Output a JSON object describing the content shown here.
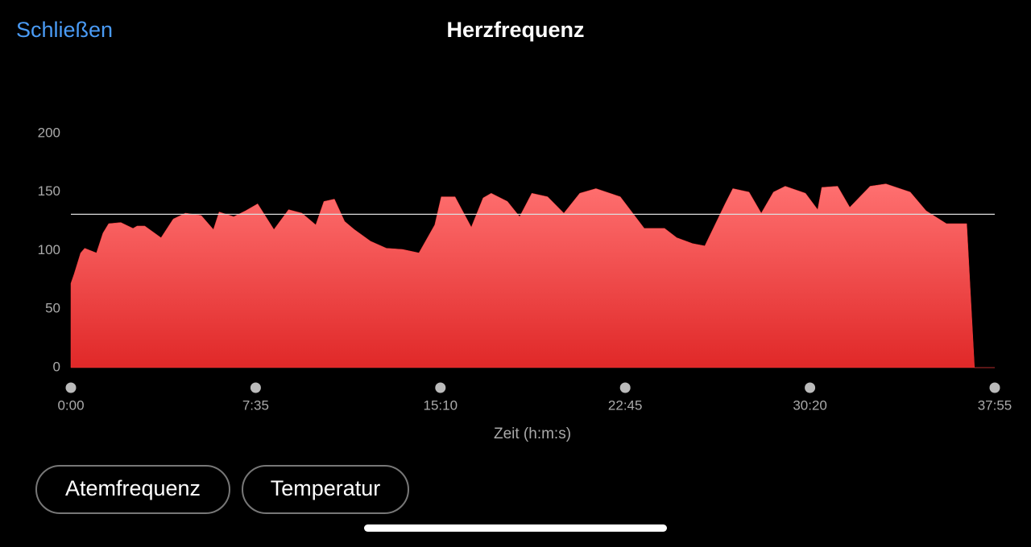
{
  "header": {
    "close": "Schließen",
    "title": "Herzfrequenz"
  },
  "chart_data": {
    "type": "area",
    "xlabel": "Zeit (h:m:s)",
    "x": [
      0,
      8,
      24,
      34,
      63,
      79,
      93,
      123,
      153,
      163,
      182,
      222,
      252,
      282,
      321,
      351,
      365,
      401,
      430,
      460,
      500,
      536,
      569,
      603,
      623,
      649,
      674,
      698,
      738,
      777,
      817,
      857,
      896,
      912,
      946,
      986,
      1015,
      1035,
      1075,
      1105,
      1135,
      1174,
      1214,
      1253,
      1293,
      1353,
      1412,
      1462,
      1492,
      1531,
      1561,
      1611,
      1630,
      1670,
      1700,
      1730,
      1759,
      1809,
      1839,
      1849,
      1888,
      1918,
      1968,
      2007,
      2067,
      2106,
      2156,
      2206,
      2225,
      2275
    ],
    "values": [
      72,
      80,
      98,
      102,
      98,
      115,
      123,
      124,
      119,
      121,
      121,
      111,
      127,
      132,
      130,
      118,
      133,
      129,
      134,
      140,
      118,
      135,
      132,
      122,
      142,
      144,
      125,
      118,
      108,
      102,
      101,
      98,
      122,
      146,
      146,
      120,
      145,
      149,
      142,
      129,
      149,
      146,
      132,
      149,
      153,
      146,
      119,
      119,
      111,
      106,
      104,
      140,
      153,
      150,
      132,
      150,
      155,
      149,
      135,
      154,
      155,
      137,
      155,
      157,
      150,
      134,
      123,
      123,
      0,
      0
    ],
    "color": "#f23b3b",
    "reference_line": 131,
    "xlim": [
      0,
      2275
    ],
    "xticks": [
      {
        "value": 0,
        "label": "0:00"
      },
      {
        "value": 455,
        "label": "7:35"
      },
      {
        "value": 910,
        "label": "15:10"
      },
      {
        "value": 1365,
        "label": "22:45"
      },
      {
        "value": 1820,
        "label": "30:20"
      },
      {
        "value": 2275,
        "label": "37:55"
      }
    ],
    "ylim": [
      0,
      200
    ],
    "yticks": [
      0,
      50,
      100,
      150,
      200
    ],
    "grid": false
  },
  "buttons": [
    "Atemfrequenz",
    "Temperatur"
  ]
}
